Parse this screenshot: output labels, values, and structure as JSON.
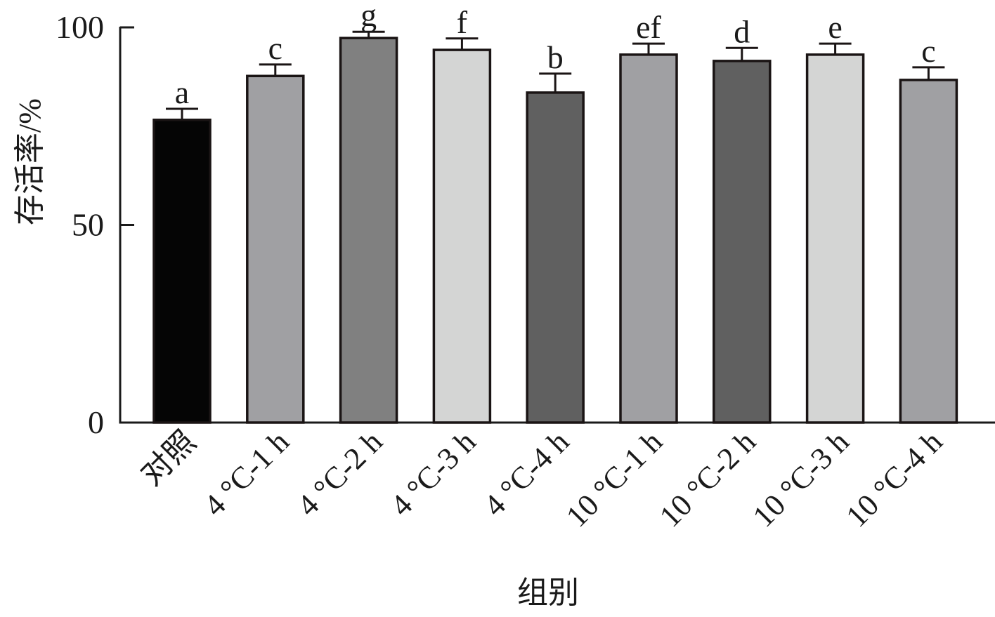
{
  "chart_data": {
    "type": "bar",
    "title": "",
    "xlabel": "组别",
    "ylabel": "存活率/%",
    "ylim": [
      0,
      100
    ],
    "yticks": [
      0,
      50,
      100
    ],
    "grid": false,
    "legend": null,
    "categories": [
      "对照",
      "4 °C-1 h",
      "4 °C-2 h",
      "4 °C-3 h",
      "4 °C-4 h",
      "10 °C-1 h",
      "10 °C-2 h",
      "10 °C-3 h",
      "10 °C-4 h"
    ],
    "values": [
      76.6,
      87.7,
      97.3,
      94.3,
      83.5,
      93.1,
      91.5,
      93.1,
      86.7
    ],
    "error_upper": [
      2.8,
      2.9,
      1.6,
      2.9,
      4.8,
      2.8,
      3.3,
      2.8,
      3.2
    ],
    "significance_letters": [
      "a",
      "c",
      "g",
      "f",
      "b",
      "ef",
      "d",
      "e",
      "c"
    ],
    "bar_colors": [
      "#050505",
      "#a0a0a3",
      "#808080",
      "#d4d5d4",
      "#606060",
      "#a0a0a3",
      "#606060",
      "#d4d5d4",
      "#a0a0a3"
    ]
  }
}
